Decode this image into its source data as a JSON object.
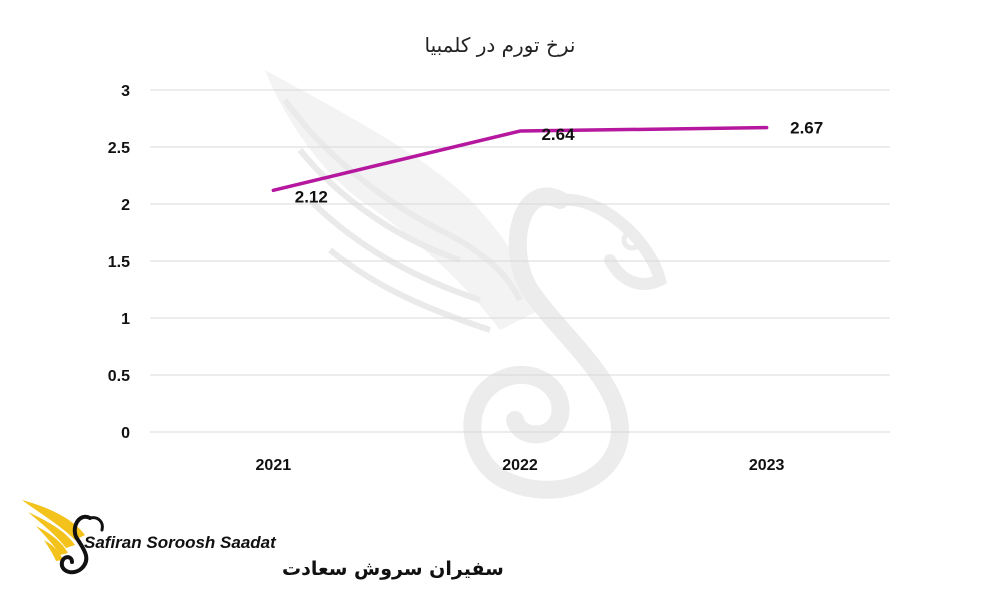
{
  "colors": {
    "series": "#b5179e",
    "grid": "#d9d9d9",
    "watermark": "#f1f1f1",
    "logo_gold": "#f3c21b",
    "logo_dark": "#111111"
  },
  "chart_data": {
    "type": "line",
    "title": "نرخ تورم در کلمبیا",
    "xlabel": "",
    "ylabel": "",
    "categories": [
      "2021",
      "2022",
      "2023"
    ],
    "series": [
      {
        "values": [
          2.12,
          2.64,
          2.67
        ],
        "data_labels": [
          "2.12",
          "2.64",
          "2.67"
        ]
      }
    ],
    "ylim": [
      0,
      3
    ],
    "yticks": [
      "0",
      "0.5",
      "1",
      "1.5",
      "2",
      "2.5",
      "3"
    ],
    "grid": true,
    "legend": "none"
  },
  "logo": {
    "name_en": "Safiran Soroosh Saadat",
    "name_fa": "سفیران سروش سعادت",
    "icon": "bird-wing-icon"
  },
  "watermark": {
    "icon": "bird-wing-watermark-icon"
  }
}
